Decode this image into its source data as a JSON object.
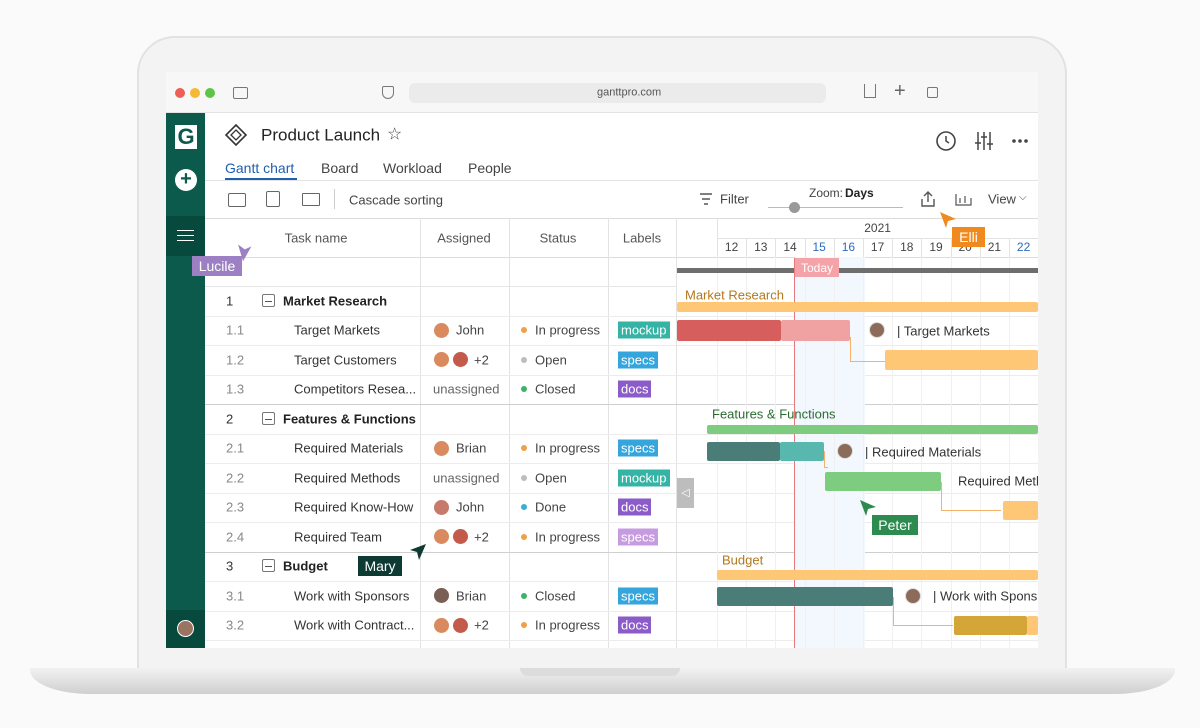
{
  "browser": {
    "url": "ganttpro.com"
  },
  "sidebar": {
    "logo": "G"
  },
  "header": {
    "title": "Product Launch",
    "tabs": [
      "Gantt chart",
      "Board",
      "Workload",
      "People"
    ]
  },
  "toolbar": {
    "cascade": "Cascade sorting",
    "filter": "Filter",
    "zoom_label": "Zoom:",
    "zoom_value": "Days",
    "view": "View"
  },
  "table": {
    "columns": [
      "Task name",
      "Assigned",
      "Status",
      "Labels"
    ],
    "rows": [
      {
        "id": "1",
        "name": "Market Research",
        "group": true
      },
      {
        "id": "1.1",
        "name": "Target Markets",
        "assignee": "John",
        "status": "In progress",
        "status_color": "#f0a04b",
        "label": "mockup",
        "label_color": "#35b3a5"
      },
      {
        "id": "1.2",
        "name": "Target Customers",
        "more": "+2",
        "status": "Open",
        "status_color": "#bdbdbd",
        "label": "specs",
        "label_color": "#36a5dc"
      },
      {
        "id": "1.3",
        "name": "Competitors Resea...",
        "unassigned": "unassigned",
        "status": "Closed",
        "status_color": "#3db36a",
        "label": "docs",
        "label_color": "#8b5cc7"
      },
      {
        "id": "2",
        "name": "Features & Functions",
        "group": true
      },
      {
        "id": "2.1",
        "name": "Required Materials",
        "assignee": "Brian",
        "status": "In progress",
        "status_color": "#f0a04b",
        "label": "specs",
        "label_color": "#36a5dc"
      },
      {
        "id": "2.2",
        "name": "Required Methods",
        "unassigned": "unassigned",
        "status": "Open",
        "status_color": "#bdbdbd",
        "label": "mockup",
        "label_color": "#35b3a5"
      },
      {
        "id": "2.3",
        "name": "Required Know-How",
        "assignee": "John",
        "status": "Done",
        "status_color": "#3aafd6",
        "label": "docs",
        "label_color": "#8b5cc7"
      },
      {
        "id": "2.4",
        "name": "Required Team",
        "more": "+2",
        "status": "In progress",
        "status_color": "#f0a04b",
        "label": "specs",
        "label_color": "#c79be0"
      },
      {
        "id": "3",
        "name": "Budget",
        "group": true
      },
      {
        "id": "3.1",
        "name": "Work with Sponsors",
        "assignee": "Brian",
        "status": "Closed",
        "status_color": "#3db36a",
        "label": "specs",
        "label_color": "#36a5dc"
      },
      {
        "id": "3.2",
        "name": "Work with Contract...",
        "more": "+2",
        "status": "In progress",
        "status_color": "#f0a04b",
        "label": "docs",
        "label_color": "#8b5cc7"
      }
    ]
  },
  "timeline": {
    "year": "2021",
    "days": [
      12,
      13,
      14,
      15,
      16,
      17,
      18,
      19,
      20,
      21,
      22
    ],
    "today": "Today",
    "bar_labels": [
      "Market Research",
      "| Target Markets",
      "Features & Functions",
      "| Required Materials",
      "Required Meth",
      "Budget",
      "| Work with Spons"
    ]
  },
  "cursors": [
    "Lucile",
    "Elli",
    "Peter",
    "Mary"
  ]
}
